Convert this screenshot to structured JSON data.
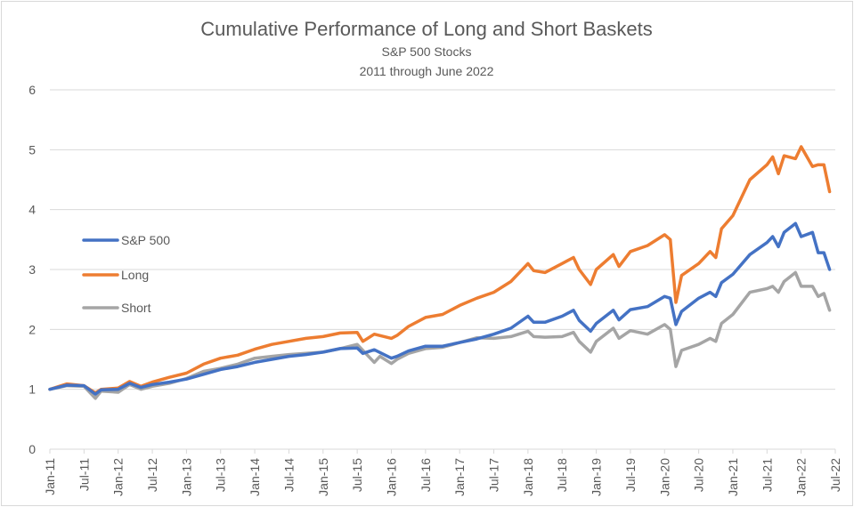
{
  "chart_data": {
    "type": "line",
    "title": "Cumulative Performance of Long and Short Baskets",
    "subtitle_lines": [
      "S&P 500 Stocks",
      "2011 through June 2022"
    ],
    "xlabel": "",
    "ylabel": "",
    "ylim": [
      0,
      6
    ],
    "yticks": [
      0,
      1,
      2,
      3,
      4,
      5,
      6
    ],
    "xlim": [
      "Jan-11",
      "Jul-22"
    ],
    "x_tick_labels": [
      "Jan-11",
      "Jul-11",
      "Jan-12",
      "Jul-12",
      "Jan-13",
      "Jul-13",
      "Jan-14",
      "Jul-14",
      "Jan-15",
      "Jul-15",
      "Jan-16",
      "Jul-16",
      "Jan-17",
      "Jul-17",
      "Jan-18",
      "Jul-18",
      "Jan-19",
      "Jul-19",
      "Jan-20",
      "Jul-20",
      "Jan-21",
      "Jul-21",
      "Jan-22",
      "Jul-22"
    ],
    "grid": "horizontal",
    "legend_position": "left",
    "series": [
      {
        "name": "S&P 500",
        "color": "#4472C4",
        "points": [
          [
            "Jan-11",
            1.0
          ],
          [
            "Apr-11",
            1.07
          ],
          [
            "Jul-11",
            1.06
          ],
          [
            "Sep-11",
            0.92
          ],
          [
            "Oct-11",
            0.99
          ],
          [
            "Jan-12",
            1.0
          ],
          [
            "Mar-12",
            1.1
          ],
          [
            "May-12",
            1.03
          ],
          [
            "Jul-12",
            1.08
          ],
          [
            "Oct-12",
            1.12
          ],
          [
            "Jan-13",
            1.17
          ],
          [
            "Apr-13",
            1.25
          ],
          [
            "Jul-13",
            1.33
          ],
          [
            "Oct-13",
            1.38
          ],
          [
            "Jan-14",
            1.45
          ],
          [
            "Apr-14",
            1.5
          ],
          [
            "Jul-14",
            1.55
          ],
          [
            "Oct-14",
            1.58
          ],
          [
            "Jan-15",
            1.62
          ],
          [
            "Apr-15",
            1.68
          ],
          [
            "Jul-15",
            1.69
          ],
          [
            "Aug-15",
            1.6
          ],
          [
            "Oct-15",
            1.66
          ],
          [
            "Jan-16",
            1.52
          ],
          [
            "Feb-16",
            1.55
          ],
          [
            "Apr-16",
            1.64
          ],
          [
            "Jul-16",
            1.72
          ],
          [
            "Oct-16",
            1.72
          ],
          [
            "Jan-17",
            1.78
          ],
          [
            "Apr-17",
            1.84
          ],
          [
            "Jul-17",
            1.92
          ],
          [
            "Oct-17",
            2.02
          ],
          [
            "Jan-18",
            2.22
          ],
          [
            "Feb-18",
            2.12
          ],
          [
            "Apr-18",
            2.12
          ],
          [
            "Jul-18",
            2.22
          ],
          [
            "Sep-18",
            2.32
          ],
          [
            "Oct-18",
            2.15
          ],
          [
            "Dec-18",
            1.97
          ],
          [
            "Jan-19",
            2.1
          ],
          [
            "Apr-19",
            2.32
          ],
          [
            "May-19",
            2.16
          ],
          [
            "Jul-19",
            2.33
          ],
          [
            "Oct-19",
            2.38
          ],
          [
            "Jan-20",
            2.55
          ],
          [
            "Feb-20",
            2.52
          ],
          [
            "Mar-20",
            2.08
          ],
          [
            "Apr-20",
            2.3
          ],
          [
            "Jul-20",
            2.52
          ],
          [
            "Sep-20",
            2.62
          ],
          [
            "Oct-20",
            2.55
          ],
          [
            "Nov-20",
            2.78
          ],
          [
            "Jan-21",
            2.92
          ],
          [
            "Apr-21",
            3.25
          ],
          [
            "Jul-21",
            3.45
          ],
          [
            "Aug-21",
            3.55
          ],
          [
            "Sep-21",
            3.38
          ],
          [
            "Oct-21",
            3.62
          ],
          [
            "Dec-21",
            3.77
          ],
          [
            "Jan-22",
            3.55
          ],
          [
            "Mar-22",
            3.62
          ],
          [
            "Apr-22",
            3.28
          ],
          [
            "May-22",
            3.28
          ],
          [
            "Jun-22",
            3.0
          ]
        ]
      },
      {
        "name": "Long",
        "color": "#ED7D31",
        "points": [
          [
            "Jan-11",
            1.0
          ],
          [
            "Apr-11",
            1.09
          ],
          [
            "Jul-11",
            1.06
          ],
          [
            "Sep-11",
            0.94
          ],
          [
            "Oct-11",
            1.0
          ],
          [
            "Jan-12",
            1.02
          ],
          [
            "Mar-12",
            1.13
          ],
          [
            "May-12",
            1.05
          ],
          [
            "Jul-12",
            1.12
          ],
          [
            "Oct-12",
            1.2
          ],
          [
            "Jan-13",
            1.27
          ],
          [
            "Apr-13",
            1.42
          ],
          [
            "Jul-13",
            1.52
          ],
          [
            "Oct-13",
            1.57
          ],
          [
            "Jan-14",
            1.67
          ],
          [
            "Apr-14",
            1.75
          ],
          [
            "Jul-14",
            1.8
          ],
          [
            "Oct-14",
            1.85
          ],
          [
            "Jan-15",
            1.88
          ],
          [
            "Apr-15",
            1.94
          ],
          [
            "Jul-15",
            1.95
          ],
          [
            "Aug-15",
            1.8
          ],
          [
            "Oct-15",
            1.92
          ],
          [
            "Jan-16",
            1.85
          ],
          [
            "Feb-16",
            1.9
          ],
          [
            "Apr-16",
            2.05
          ],
          [
            "Jul-16",
            2.2
          ],
          [
            "Oct-16",
            2.25
          ],
          [
            "Jan-17",
            2.4
          ],
          [
            "Apr-17",
            2.52
          ],
          [
            "Jul-17",
            2.62
          ],
          [
            "Oct-17",
            2.8
          ],
          [
            "Jan-18",
            3.1
          ],
          [
            "Feb-18",
            2.98
          ],
          [
            "Apr-18",
            2.95
          ],
          [
            "Jul-18",
            3.1
          ],
          [
            "Sep-18",
            3.2
          ],
          [
            "Oct-18",
            3.0
          ],
          [
            "Dec-18",
            2.75
          ],
          [
            "Jan-19",
            3.0
          ],
          [
            "Apr-19",
            3.25
          ],
          [
            "May-19",
            3.05
          ],
          [
            "Jul-19",
            3.3
          ],
          [
            "Oct-19",
            3.4
          ],
          [
            "Jan-20",
            3.58
          ],
          [
            "Feb-20",
            3.5
          ],
          [
            "Mar-20",
            2.45
          ],
          [
            "Apr-20",
            2.9
          ],
          [
            "Jul-20",
            3.1
          ],
          [
            "Sep-20",
            3.3
          ],
          [
            "Oct-20",
            3.2
          ],
          [
            "Nov-20",
            3.68
          ],
          [
            "Jan-21",
            3.9
          ],
          [
            "Apr-21",
            4.5
          ],
          [
            "Jul-21",
            4.75
          ],
          [
            "Aug-21",
            4.88
          ],
          [
            "Sep-21",
            4.6
          ],
          [
            "Oct-21",
            4.9
          ],
          [
            "Dec-21",
            4.85
          ],
          [
            "Jan-22",
            5.05
          ],
          [
            "Mar-22",
            4.72
          ],
          [
            "Apr-22",
            4.75
          ],
          [
            "May-22",
            4.75
          ],
          [
            "Jun-22",
            4.3
          ]
        ]
      },
      {
        "name": "Short",
        "color": "#A5A5A5",
        "points": [
          [
            "Jan-11",
            1.0
          ],
          [
            "Apr-11",
            1.06
          ],
          [
            "Jul-11",
            1.05
          ],
          [
            "Sep-11",
            0.85
          ],
          [
            "Oct-11",
            0.97
          ],
          [
            "Jan-12",
            0.95
          ],
          [
            "Mar-12",
            1.08
          ],
          [
            "May-12",
            1.0
          ],
          [
            "Jul-12",
            1.05
          ],
          [
            "Oct-12",
            1.1
          ],
          [
            "Jan-13",
            1.18
          ],
          [
            "Apr-13",
            1.3
          ],
          [
            "Jul-13",
            1.35
          ],
          [
            "Oct-13",
            1.42
          ],
          [
            "Jan-14",
            1.52
          ],
          [
            "Apr-14",
            1.55
          ],
          [
            "Jul-14",
            1.58
          ],
          [
            "Oct-14",
            1.6
          ],
          [
            "Jan-15",
            1.62
          ],
          [
            "Apr-15",
            1.68
          ],
          [
            "Jul-15",
            1.75
          ],
          [
            "Aug-15",
            1.65
          ],
          [
            "Oct-15",
            1.45
          ],
          [
            "Nov-15",
            1.55
          ],
          [
            "Jan-16",
            1.43
          ],
          [
            "Feb-16",
            1.5
          ],
          [
            "Apr-16",
            1.6
          ],
          [
            "Jul-16",
            1.68
          ],
          [
            "Oct-16",
            1.7
          ],
          [
            "Jan-17",
            1.78
          ],
          [
            "Apr-17",
            1.86
          ],
          [
            "Jul-17",
            1.85
          ],
          [
            "Oct-17",
            1.88
          ],
          [
            "Jan-18",
            1.97
          ],
          [
            "Feb-18",
            1.88
          ],
          [
            "Apr-18",
            1.87
          ],
          [
            "Jul-18",
            1.88
          ],
          [
            "Sep-18",
            1.95
          ],
          [
            "Oct-18",
            1.8
          ],
          [
            "Dec-18",
            1.62
          ],
          [
            "Jan-19",
            1.8
          ],
          [
            "Apr-19",
            2.02
          ],
          [
            "May-19",
            1.85
          ],
          [
            "Jul-19",
            1.98
          ],
          [
            "Oct-19",
            1.92
          ],
          [
            "Jan-20",
            2.08
          ],
          [
            "Feb-20",
            2.0
          ],
          [
            "Mar-20",
            1.38
          ],
          [
            "Apr-20",
            1.65
          ],
          [
            "Jul-20",
            1.75
          ],
          [
            "Sep-20",
            1.85
          ],
          [
            "Oct-20",
            1.8
          ],
          [
            "Nov-20",
            2.1
          ],
          [
            "Jan-21",
            2.25
          ],
          [
            "Apr-21",
            2.62
          ],
          [
            "Jul-21",
            2.68
          ],
          [
            "Aug-21",
            2.72
          ],
          [
            "Sep-21",
            2.62
          ],
          [
            "Oct-21",
            2.8
          ],
          [
            "Dec-21",
            2.95
          ],
          [
            "Jan-22",
            2.72
          ],
          [
            "Mar-22",
            2.72
          ],
          [
            "Apr-22",
            2.55
          ],
          [
            "May-22",
            2.6
          ],
          [
            "Jun-22",
            2.32
          ]
        ]
      }
    ]
  }
}
